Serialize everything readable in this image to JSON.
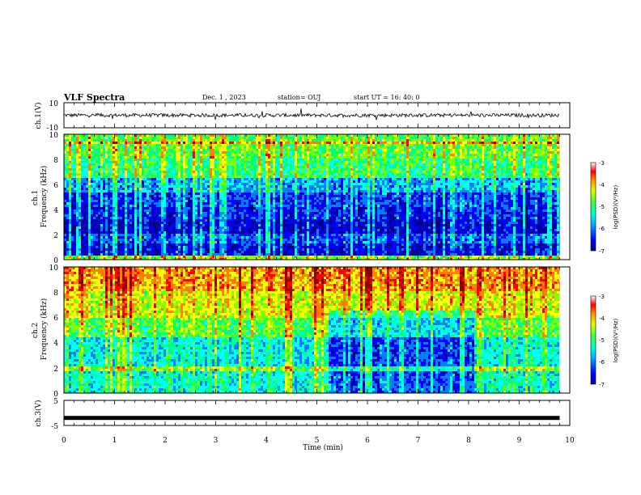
{
  "header": {
    "title": "VLF Spectra",
    "date": "Dec. 1  , 2023",
    "station": "station= OUJ",
    "start": "start  UT  =   16: 40: 0"
  },
  "colors": {
    "spectrogram_scale": [
      "#00008a",
      "#0000ff",
      "#0080ff",
      "#00ffff",
      "#00ff80",
      "#80ff00",
      "#ffff00",
      "#ff8000",
      "#ff0000",
      "#8a0000"
    ],
    "trace": "#000000"
  },
  "chart_data": [
    {
      "type": "line",
      "name": "ch1-waveform",
      "ylabel": "ch.1(V)",
      "xlim": [
        0,
        9.8
      ],
      "ylim": [
        -10,
        10
      ],
      "yticks": [
        "10",
        "-10"
      ],
      "amplitude_approx": 2,
      "baseline": 0
    },
    {
      "type": "heatmap",
      "name": "ch1-spectrogram",
      "ylabel": "ch.1\nFrequency (kHz)",
      "ylim": [
        0,
        10
      ],
      "yticks": [
        "0",
        "2",
        "4",
        "6",
        "8",
        "10"
      ],
      "xlim": [
        0,
        9.8
      ],
      "colorbar": {
        "label": "log(PSD)(V²/Hz)",
        "ticks": [
          "-3",
          "-4",
          "-5",
          "-6",
          "-7"
        ],
        "range": [
          -7,
          -3
        ]
      },
      "bands": [
        {
          "f_low": 0,
          "f_high": 0.4,
          "level": 0.55
        },
        {
          "f_low": 0.4,
          "f_high": 1.2,
          "level": 0.12
        },
        {
          "f_low": 1.2,
          "f_high": 2.0,
          "level": 0.2
        },
        {
          "f_low": 2.0,
          "f_high": 3.2,
          "level": 0.1
        },
        {
          "f_low": 3.2,
          "f_high": 4.2,
          "level": 0.15
        },
        {
          "f_low": 4.2,
          "f_high": 5.4,
          "level": 0.18
        },
        {
          "f_low": 5.4,
          "f_high": 6.6,
          "level": 0.28
        },
        {
          "f_low": 6.6,
          "f_high": 8.0,
          "level": 0.45
        },
        {
          "f_low": 8.0,
          "f_high": 10,
          "level": 0.5
        }
      ]
    },
    {
      "type": "heatmap",
      "name": "ch2-spectrogram",
      "ylabel": "ch.2\nFrequency (kHz)",
      "ylim": [
        0,
        10
      ],
      "yticks": [
        "0",
        "2",
        "4",
        "6",
        "8",
        "10"
      ],
      "xlim": [
        0,
        9.8
      ],
      "colorbar": {
        "label": "log(PSD)(V²/Hz)",
        "ticks": [
          "-3",
          "-4",
          "-5",
          "-6",
          "-7"
        ],
        "range": [
          -7,
          -3
        ]
      },
      "bands": [
        {
          "f_low": 0,
          "f_high": 1.5,
          "level": 0.38
        },
        {
          "f_low": 1.5,
          "f_high": 4.5,
          "level": 0.36
        },
        {
          "f_low": 4.5,
          "f_high": 6.0,
          "level": 0.5
        },
        {
          "f_low": 6.0,
          "f_high": 8.0,
          "level": 0.62
        },
        {
          "f_low": 8.0,
          "f_high": 10,
          "level": 0.72
        }
      ],
      "quiet_interval_min": [
        5.2,
        8.1
      ],
      "quiet_interval_fmax_khz": 6.5
    },
    {
      "type": "line",
      "name": "ch3-waveform",
      "ylabel": "ch.3(V)",
      "xlim": [
        0,
        9.8
      ],
      "ylim": [
        -5,
        5
      ],
      "yticks": [
        "5",
        "-5"
      ],
      "constant_value": -2
    }
  ],
  "xaxis": {
    "label": "Time  (min)",
    "ticks": [
      "0",
      "1",
      "2",
      "3",
      "4",
      "5",
      "6",
      "7",
      "8",
      "9",
      "10"
    ],
    "range": [
      0,
      10
    ]
  }
}
